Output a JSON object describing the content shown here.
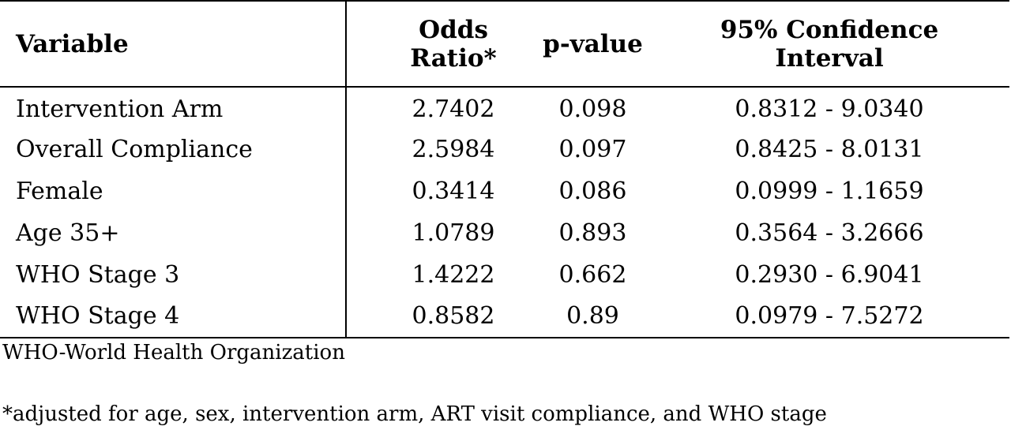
{
  "table": {
    "headers": {
      "variable": "Variable",
      "odds_ratio_line1": "Odds",
      "odds_ratio_line2": "Ratio*",
      "p_value": "p-value",
      "ci_line1": "95% Confidence",
      "ci_line2": "Interval"
    },
    "rows": [
      {
        "variable": "Intervention Arm",
        "odds_ratio": "2.7402",
        "p_value": "0.098",
        "ci": "0.8312 - 9.0340"
      },
      {
        "variable": "Overall Compliance",
        "odds_ratio": "2.5984",
        "p_value": "0.097",
        "ci": "0.8425 - 8.0131"
      },
      {
        "variable": "Female",
        "odds_ratio": "0.3414",
        "p_value": "0.086",
        "ci": "0.0999 - 1.1659"
      },
      {
        "variable": "Age 35+",
        "odds_ratio": "1.0789",
        "p_value": "0.893",
        "ci": "0.3564 - 3.2666"
      },
      {
        "variable": "WHO Stage 3",
        "odds_ratio": "1.4222",
        "p_value": "0.662",
        "ci": "0.2930 - 6.9041"
      },
      {
        "variable": "WHO Stage 4",
        "odds_ratio": "0.8582",
        "p_value": "0.89",
        "ci": "0.0979 - 7.5272"
      }
    ]
  },
  "footnotes": {
    "abbreviation": "WHO-World Health Organization",
    "adjustment": "*adjusted for age, sex, intervention arm, ART visit compliance, and WHO stage"
  }
}
